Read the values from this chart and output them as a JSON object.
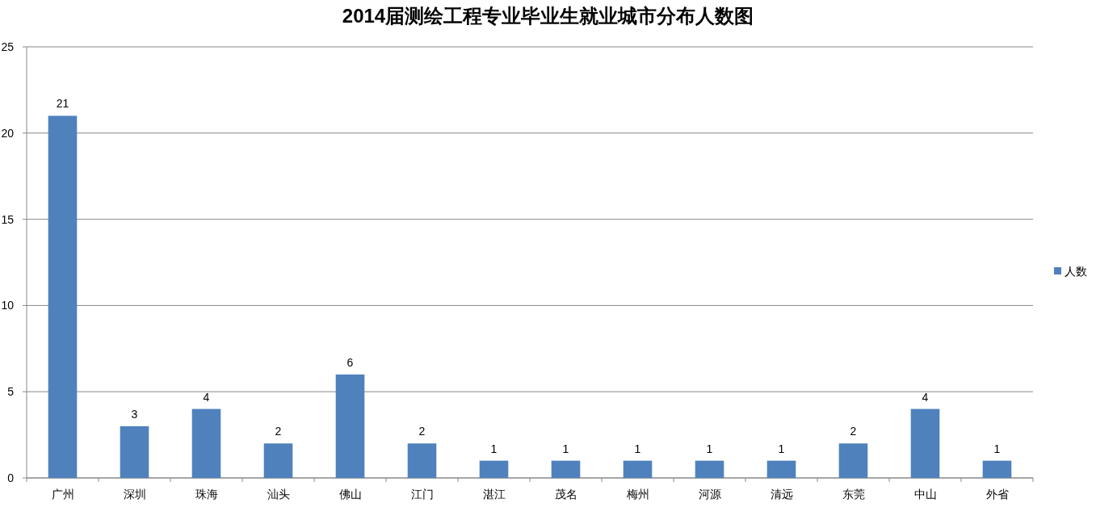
{
  "chart_data": {
    "type": "bar",
    "title": "2014届测绘工程专业毕业生就业城市分布人数图",
    "categories": [
      "广州",
      "深圳",
      "珠海",
      "汕头",
      "佛山",
      "江门",
      "湛江",
      "茂名",
      "梅州",
      "河源",
      "清远",
      "东莞",
      "中山",
      "外省"
    ],
    "series": [
      {
        "name": "人数",
        "color": "#4f81bd",
        "values": [
          21,
          3,
          4,
          2,
          6,
          2,
          1,
          1,
          1,
          1,
          1,
          2,
          4,
          1
        ]
      }
    ],
    "ylim": [
      0,
      25
    ],
    "yticks": [
      0,
      5,
      10,
      15,
      20,
      25
    ],
    "grid": "y",
    "legend": "right",
    "data_labels": true
  }
}
